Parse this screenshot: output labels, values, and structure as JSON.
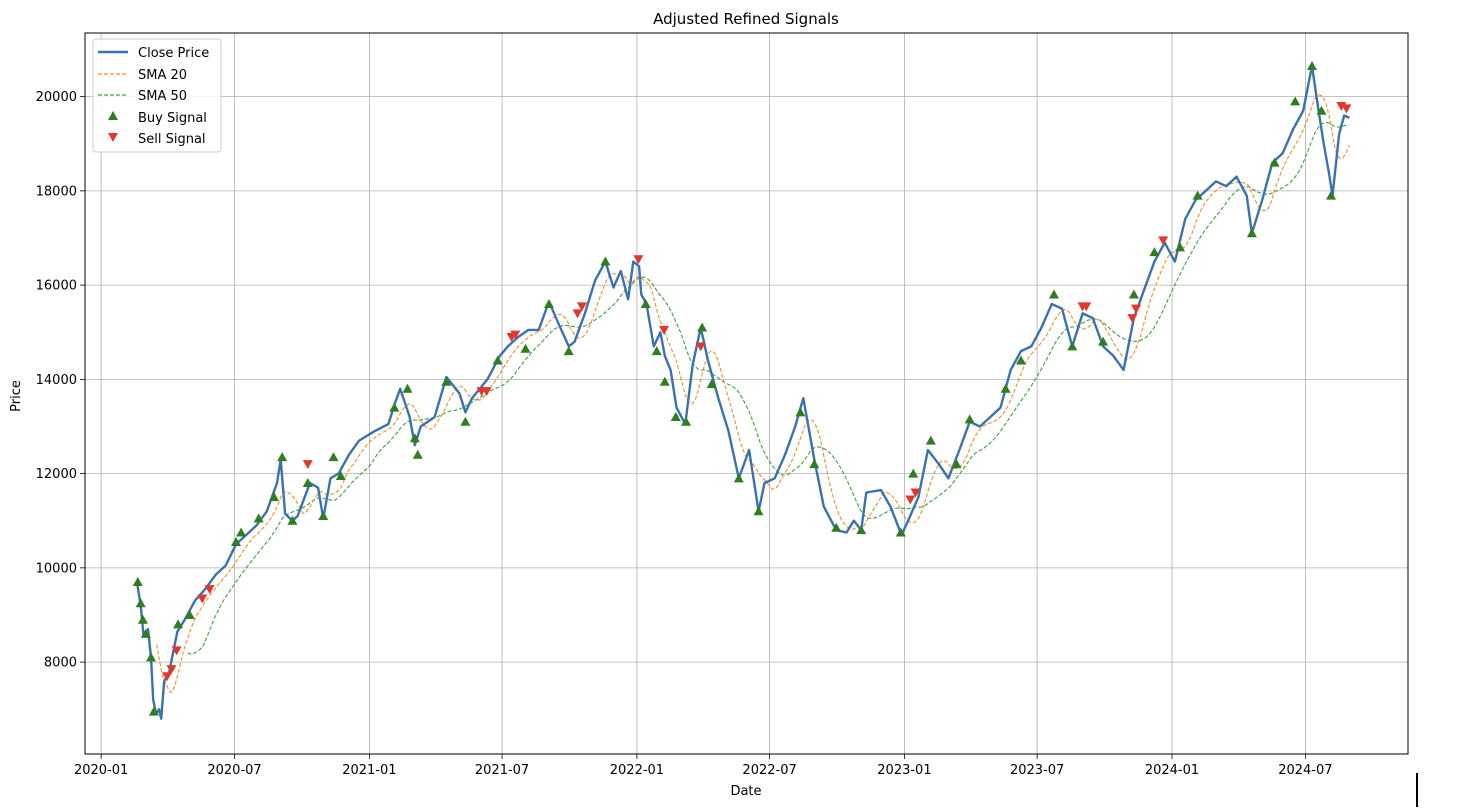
{
  "chart_data": {
    "type": "line",
    "title": "Adjusted Refined Signals",
    "xlabel": "Date",
    "ylabel": "Price",
    "x_ticks": [
      "2020-01",
      "2020-07",
      "2021-01",
      "2021-07",
      "2022-01",
      "2022-07",
      "2023-01",
      "2023-07",
      "2024-01",
      "2024-07"
    ],
    "y_ticks": [
      8000,
      10000,
      12000,
      14000,
      16000,
      18000,
      20000
    ],
    "xlim": [
      "2019-12-10",
      "2024-11-18"
    ],
    "ylim": [
      6050,
      21350
    ],
    "grid": true,
    "legend_position": "upper-left",
    "series": [
      {
        "name": "Close Price",
        "color": "#3a72b0",
        "style": "solid"
      },
      {
        "name": "SMA 20",
        "color": "#f28e2b",
        "style": "dashed"
      },
      {
        "name": "SMA 50",
        "color": "#3ca33c",
        "style": "dashed"
      }
    ],
    "signals": [
      {
        "name": "Buy Signal",
        "marker": "triangle-up",
        "color": "#2e7d1f"
      },
      {
        "name": "Sell Signal",
        "marker": "triangle-down",
        "color": "#e0382e"
      }
    ],
    "close_keypoints": [
      [
        "2020-02-19",
        9700
      ],
      [
        "2020-02-24",
        9200
      ],
      [
        "2020-02-28",
        8550
      ],
      [
        "2020-03-05",
        8700
      ],
      [
        "2020-03-09",
        8100
      ],
      [
        "2020-03-12",
        7200
      ],
      [
        "2020-03-16",
        6900
      ],
      [
        "2020-03-20",
        7000
      ],
      [
        "2020-03-23",
        6800
      ],
      [
        "2020-03-27",
        7600
      ],
      [
        "2020-04-03",
        7800
      ],
      [
        "2020-04-14",
        8650
      ],
      [
        "2020-04-24",
        8900
      ],
      [
        "2020-05-08",
        9300
      ],
      [
        "2020-05-22",
        9550
      ],
      [
        "2020-06-05",
        9850
      ],
      [
        "2020-06-19",
        10050
      ],
      [
        "2020-07-03",
        10500
      ],
      [
        "2020-07-17",
        10700
      ],
      [
        "2020-07-31",
        10900
      ],
      [
        "2020-08-14",
        11200
      ],
      [
        "2020-08-28",
        11800
      ],
      [
        "2020-09-02",
        12300
      ],
      [
        "2020-09-08",
        11150
      ],
      [
        "2020-09-18",
        11000
      ],
      [
        "2020-09-25",
        11100
      ],
      [
        "2020-10-12",
        11800
      ],
      [
        "2020-10-23",
        11700
      ],
      [
        "2020-10-30",
        11050
      ],
      [
        "2020-11-09",
        11900
      ],
      [
        "2020-11-20",
        12000
      ],
      [
        "2020-12-04",
        12400
      ],
      [
        "2020-12-18",
        12700
      ],
      [
        "2021-01-08",
        12900
      ],
      [
        "2021-01-27",
        13050
      ],
      [
        "2021-02-05",
        13500
      ],
      [
        "2021-02-12",
        13800
      ],
      [
        "2021-02-25",
        13200
      ],
      [
        "2021-03-04",
        12600
      ],
      [
        "2021-03-12",
        13000
      ],
      [
        "2021-03-31",
        13200
      ],
      [
        "2021-04-16",
        14050
      ],
      [
        "2021-05-04",
        13700
      ],
      [
        "2021-05-12",
        13300
      ],
      [
        "2021-05-21",
        13600
      ],
      [
        "2021-06-11",
        14000
      ],
      [
        "2021-06-28",
        14500
      ],
      [
        "2021-07-09",
        14700
      ],
      [
        "2021-07-23",
        14900
      ],
      [
        "2021-08-06",
        15050
      ],
      [
        "2021-08-20",
        15050
      ],
      [
        "2021-09-03",
        15650
      ],
      [
        "2021-09-17",
        15150
      ],
      [
        "2021-09-30",
        14700
      ],
      [
        "2021-10-08",
        14800
      ],
      [
        "2021-10-22",
        15400
      ],
      [
        "2021-11-05",
        16100
      ],
      [
        "2021-11-19",
        16500
      ],
      [
        "2021-11-30",
        15950
      ],
      [
        "2021-12-10",
        16300
      ],
      [
        "2021-12-20",
        15700
      ],
      [
        "2021-12-27",
        16500
      ],
      [
        "2022-01-04",
        16400
      ],
      [
        "2022-01-07",
        15800
      ],
      [
        "2022-01-14",
        15600
      ],
      [
        "2022-01-24",
        14700
      ],
      [
        "2022-02-02",
        15000
      ],
      [
        "2022-02-08",
        14500
      ],
      [
        "2022-02-16",
        14200
      ],
      [
        "2022-02-24",
        13400
      ],
      [
        "2022-03-08",
        13050
      ],
      [
        "2022-03-18",
        14300
      ],
      [
        "2022-03-29",
        15100
      ],
      [
        "2022-04-08",
        14400
      ],
      [
        "2022-04-22",
        13600
      ],
      [
        "2022-05-06",
        12900
      ],
      [
        "2022-05-20",
        11900
      ],
      [
        "2022-06-03",
        12500
      ],
      [
        "2022-06-16",
        11200
      ],
      [
        "2022-06-24",
        11800
      ],
      [
        "2022-07-08",
        11900
      ],
      [
        "2022-07-22",
        12400
      ],
      [
        "2022-08-05",
        13000
      ],
      [
        "2022-08-16",
        13600
      ],
      [
        "2022-08-31",
        12300
      ],
      [
        "2022-09-13",
        11300
      ],
      [
        "2022-09-30",
        10800
      ],
      [
        "2022-10-14",
        10750
      ],
      [
        "2022-10-24",
        11000
      ],
      [
        "2022-11-03",
        10800
      ],
      [
        "2022-11-10",
        11600
      ],
      [
        "2022-11-30",
        11650
      ],
      [
        "2022-12-13",
        11300
      ],
      [
        "2022-12-28",
        10700
      ],
      [
        "2023-01-06",
        11000
      ],
      [
        "2023-01-20",
        11500
      ],
      [
        "2023-02-02",
        12500
      ],
      [
        "2023-02-17",
        12200
      ],
      [
        "2023-03-02",
        11900
      ],
      [
        "2023-03-17",
        12500
      ],
      [
        "2023-03-31",
        13100
      ],
      [
        "2023-04-14",
        13000
      ],
      [
        "2023-04-28",
        13200
      ],
      [
        "2023-05-12",
        13400
      ],
      [
        "2023-05-26",
        14200
      ],
      [
        "2023-06-09",
        14600
      ],
      [
        "2023-06-23",
        14700
      ],
      [
        "2023-07-07",
        15100
      ],
      [
        "2023-07-21",
        15600
      ],
      [
        "2023-08-04",
        15500
      ],
      [
        "2023-08-18",
        14700
      ],
      [
        "2023-09-01",
        15400
      ],
      [
        "2023-09-15",
        15300
      ],
      [
        "2023-09-29",
        14700
      ],
      [
        "2023-10-13",
        14500
      ],
      [
        "2023-10-27",
        14200
      ],
      [
        "2023-11-10",
        15300
      ],
      [
        "2023-11-24",
        15900
      ],
      [
        "2023-12-08",
        16500
      ],
      [
        "2023-12-22",
        16900
      ],
      [
        "2024-01-05",
        16500
      ],
      [
        "2024-01-19",
        17400
      ],
      [
        "2024-02-02",
        17800
      ],
      [
        "2024-02-16",
        18000
      ],
      [
        "2024-03-01",
        18200
      ],
      [
        "2024-03-15",
        18100
      ],
      [
        "2024-03-29",
        18300
      ],
      [
        "2024-04-12",
        17900
      ],
      [
        "2024-04-19",
        17100
      ],
      [
        "2024-05-03",
        17800
      ],
      [
        "2024-05-17",
        18600
      ],
      [
        "2024-05-31",
        18800
      ],
      [
        "2024-06-14",
        19300
      ],
      [
        "2024-06-28",
        19700
      ],
      [
        "2024-07-10",
        20650
      ],
      [
        "2024-07-19",
        19700
      ],
      [
        "2024-07-26",
        19000
      ],
      [
        "2024-08-02",
        18400
      ],
      [
        "2024-08-07",
        17900
      ],
      [
        "2024-08-16",
        19200
      ],
      [
        "2024-08-23",
        19600
      ],
      [
        "2024-08-30",
        19550
      ]
    ],
    "buy_signals": [
      [
        "2020-02-20",
        9700
      ],
      [
        "2020-02-24",
        9250
      ],
      [
        "2020-02-27",
        8900
      ],
      [
        "2020-03-02",
        8600
      ],
      [
        "2020-03-09",
        8100
      ],
      [
        "2020-03-13",
        6950
      ],
      [
        "2020-04-15",
        8800
      ],
      [
        "2020-05-01",
        9000
      ],
      [
        "2020-07-03",
        10550
      ],
      [
        "2020-07-10",
        10750
      ],
      [
        "2020-08-03",
        11050
      ],
      [
        "2020-08-24",
        11500
      ],
      [
        "2020-09-04",
        12350
      ],
      [
        "2020-09-18",
        11000
      ],
      [
        "2020-10-09",
        11800
      ],
      [
        "2020-10-30",
        11100
      ],
      [
        "2020-11-13",
        12350
      ],
      [
        "2020-11-23",
        11950
      ],
      [
        "2021-02-04",
        13400
      ],
      [
        "2021-02-22",
        13800
      ],
      [
        "2021-03-04",
        12750
      ],
      [
        "2021-03-08",
        12400
      ],
      [
        "2021-04-16",
        13950
      ],
      [
        "2021-05-12",
        13100
      ],
      [
        "2021-06-25",
        14400
      ],
      [
        "2021-08-02",
        14650
      ],
      [
        "2021-09-03",
        15600
      ],
      [
        "2021-09-30",
        14600
      ],
      [
        "2021-11-19",
        16500
      ],
      [
        "2022-01-13",
        15600
      ],
      [
        "2022-01-28",
        14600
      ],
      [
        "2022-02-08",
        13950
      ],
      [
        "2022-02-23",
        13200
      ],
      [
        "2022-03-09",
        13100
      ],
      [
        "2022-03-31",
        15100
      ],
      [
        "2022-04-13",
        13900
      ],
      [
        "2022-05-20",
        11900
      ],
      [
        "2022-06-16",
        11200
      ],
      [
        "2022-08-12",
        13300
      ],
      [
        "2022-08-31",
        12200
      ],
      [
        "2022-09-30",
        10850
      ],
      [
        "2022-11-03",
        10800
      ],
      [
        "2022-12-27",
        10750
      ],
      [
        "2023-01-13",
        12000
      ],
      [
        "2023-02-06",
        12700
      ],
      [
        "2023-03-13",
        12200
      ],
      [
        "2023-03-31",
        13150
      ],
      [
        "2023-05-19",
        13800
      ],
      [
        "2023-06-09",
        14400
      ],
      [
        "2023-07-24",
        15800
      ],
      [
        "2023-08-18",
        14700
      ],
      [
        "2023-09-29",
        14800
      ],
      [
        "2023-11-10",
        15800
      ],
      [
        "2023-12-08",
        16700
      ],
      [
        "2024-01-12",
        16800
      ],
      [
        "2024-02-05",
        17900
      ],
      [
        "2024-04-19",
        17100
      ],
      [
        "2024-05-20",
        18600
      ],
      [
        "2024-06-17",
        19900
      ],
      [
        "2024-07-10",
        20650
      ],
      [
        "2024-07-23",
        19700
      ],
      [
        "2024-08-05",
        17900
      ]
    ],
    "sell_signals": [
      [
        "2020-03-31",
        7700
      ],
      [
        "2020-04-06",
        7850
      ],
      [
        "2020-04-13",
        8250
      ],
      [
        "2020-05-18",
        9350
      ],
      [
        "2020-05-28",
        9550
      ],
      [
        "2020-10-09",
        12200
      ],
      [
        "2021-06-03",
        13750
      ],
      [
        "2021-06-10",
        13750
      ],
      [
        "2021-07-14",
        14900
      ],
      [
        "2021-07-19",
        14950
      ],
      [
        "2021-10-12",
        15400
      ],
      [
        "2021-10-18",
        15550
      ],
      [
        "2022-01-03",
        16550
      ],
      [
        "2022-02-07",
        15050
      ],
      [
        "2022-03-29",
        14700
      ],
      [
        "2023-01-09",
        11450
      ],
      [
        "2023-01-16",
        11600
      ],
      [
        "2023-09-01",
        15550
      ],
      [
        "2023-09-06",
        15550
      ],
      [
        "2023-11-08",
        15300
      ],
      [
        "2023-11-13",
        15500
      ],
      [
        "2023-12-20",
        16950
      ],
      [
        "2024-08-19",
        19800
      ],
      [
        "2024-08-26",
        19750
      ]
    ]
  },
  "legend": {
    "close_label": "Close Price",
    "sma20_label": "SMA 20",
    "sma50_label": "SMA 50",
    "buy_label": "Buy Signal",
    "sell_label": "Sell Signal"
  }
}
